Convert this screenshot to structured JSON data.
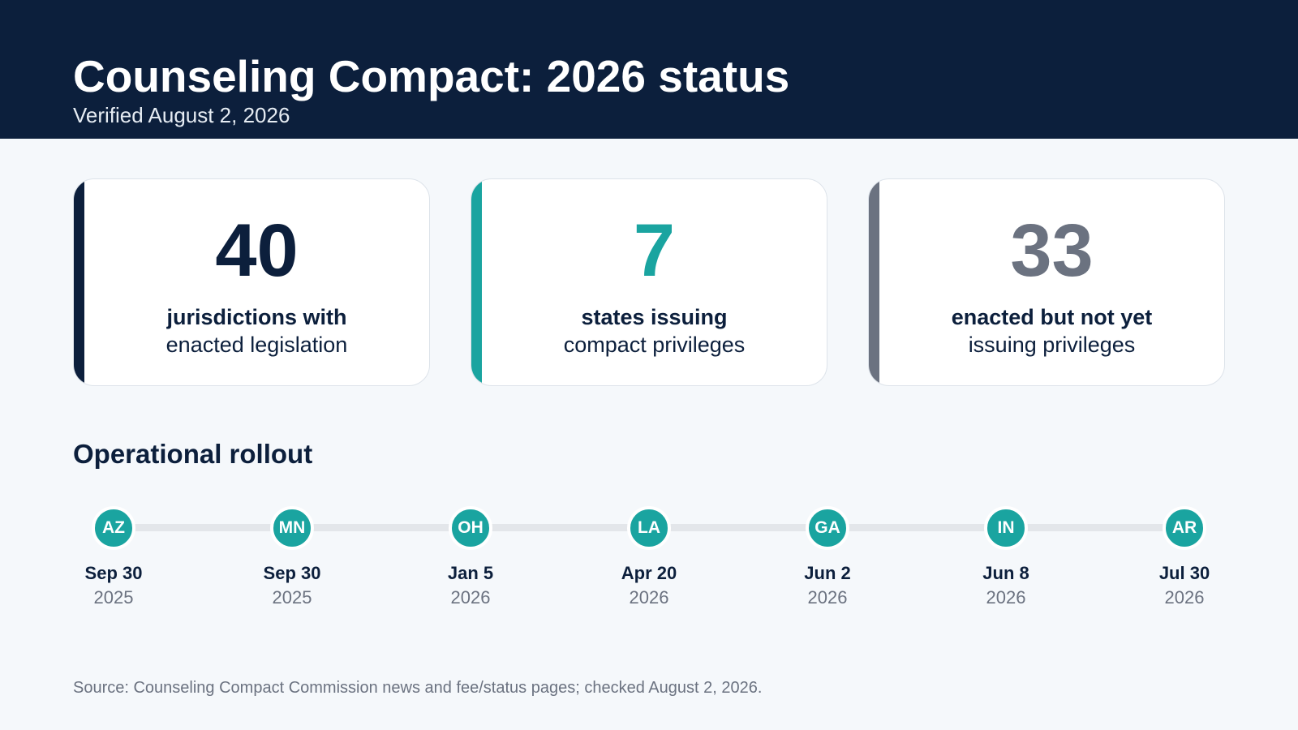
{
  "header": {
    "title": "Counseling Compact: 2026 status",
    "subtitle": "Verified August 2, 2026",
    "background_color": "#0c1f3c"
  },
  "cards": [
    {
      "number": "40",
      "line1": "jurisdictions with",
      "line2": "enacted legislation",
      "accent_color": "#0c1f3c"
    },
    {
      "number": "7",
      "line1": "states issuing",
      "line2": "compact privileges",
      "accent_color": "#1aa4a0"
    },
    {
      "number": "33",
      "line1": "enacted but not yet",
      "line2": "issuing privileges",
      "accent_color": "#6b7280"
    }
  ],
  "rollout": {
    "title": "Operational rollout",
    "accent_color": "#1aa4a0",
    "milestones": [
      {
        "state": "AZ",
        "date": "Sep 30",
        "year": "2025"
      },
      {
        "state": "MN",
        "date": "Sep 30",
        "year": "2025"
      },
      {
        "state": "OH",
        "date": "Jan 5",
        "year": "2026"
      },
      {
        "state": "LA",
        "date": "Apr 20",
        "year": "2026"
      },
      {
        "state": "GA",
        "date": "Jun 2",
        "year": "2026"
      },
      {
        "state": "IN",
        "date": "Jun 8",
        "year": "2026"
      },
      {
        "state": "AR",
        "date": "Jul 30",
        "year": "2026"
      }
    ]
  },
  "footer": {
    "source": "Source: Counseling Compact Commission news and fee/status pages; checked August 2, 2026."
  }
}
